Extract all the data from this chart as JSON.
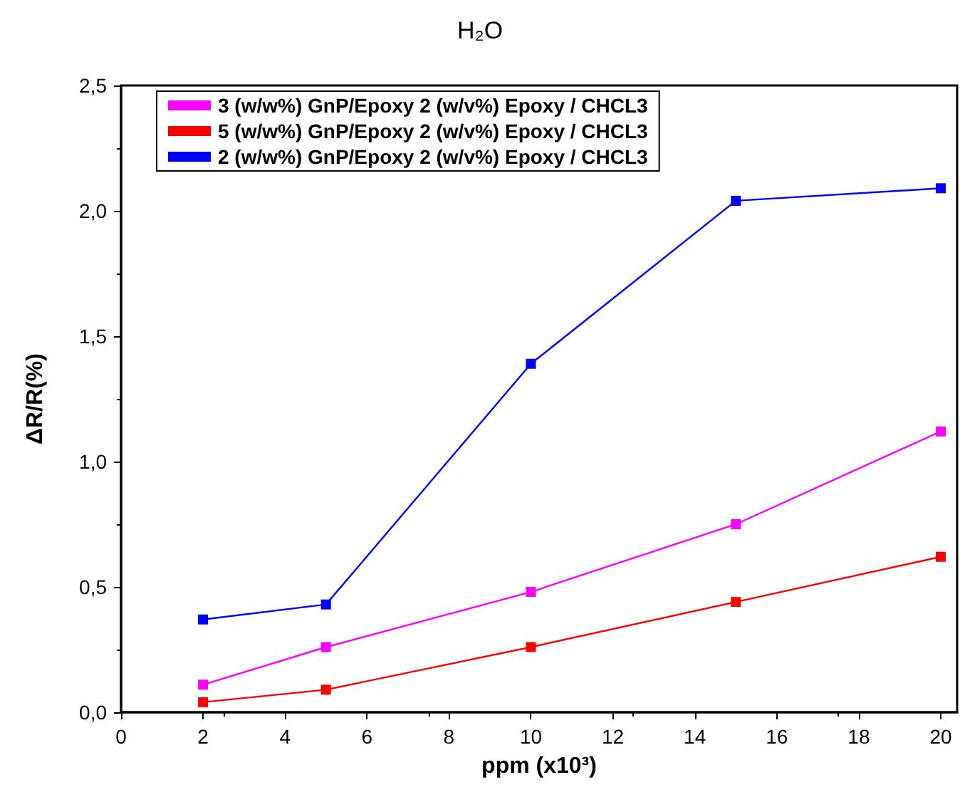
{
  "chart_data": {
    "type": "line",
    "title": "H₂O",
    "xlabel": "ppm (x10³)",
    "ylabel": "ΔR/R(%)",
    "x": [
      2,
      5,
      10,
      15,
      20
    ],
    "series": [
      {
        "name": "3 (w/w%) GnP/Epoxy 2 (w/v%) Epoxy / CHCL3",
        "color": "#ff00ff",
        "values": [
          0.11,
          0.26,
          0.48,
          0.75,
          1.12
        ]
      },
      {
        "name": "5 (w/w%) GnP/Epoxy 2 (w/v%) Epoxy / CHCL3",
        "color": "#ff0000",
        "values": [
          0.04,
          0.09,
          0.26,
          0.44,
          0.62
        ]
      },
      {
        "name": "2 (w/w%) GnP/Epoxy 2 (w/v%) Epoxy / CHCL3",
        "color": "#0000ff",
        "values": [
          0.37,
          0.43,
          1.39,
          2.04,
          2.09
        ]
      }
    ],
    "xlim": [
      0,
      20.4
    ],
    "xticks": [
      0,
      2,
      4,
      6,
      8,
      10,
      12,
      14,
      16,
      18,
      20
    ],
    "ylim": [
      0,
      2.5
    ],
    "yticks": [
      {
        "value": 0,
        "label": "0,0"
      },
      {
        "value": 0.5,
        "label": "0,5"
      },
      {
        "value": 1,
        "label": "1,0"
      },
      {
        "value": 1.5,
        "label": "1,5"
      },
      {
        "value": 2,
        "label": "2,0"
      },
      {
        "value": 2.5,
        "label": "2,5"
      }
    ],
    "legend": "top left",
    "grid": false,
    "marker": "square",
    "line_style": "solid"
  }
}
